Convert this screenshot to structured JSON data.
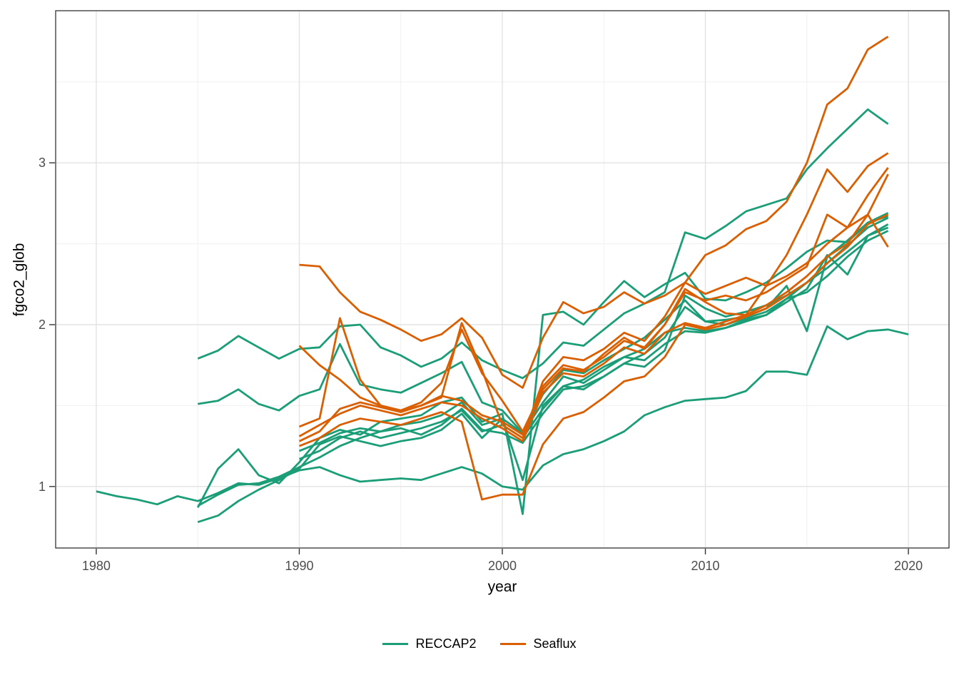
{
  "axes": {
    "x_title": "year",
    "y_title": "fgco2_glob",
    "x_ticks": [
      1980,
      1990,
      2000,
      2010,
      2020
    ],
    "y_ticks": [
      1,
      2,
      3
    ]
  },
  "legend": {
    "position": "bottom",
    "items": [
      {
        "label": "RECCAP2",
        "color": "#1B9E77"
      },
      {
        "label": "Seaflux",
        "color": "#D95F02"
      }
    ]
  },
  "colors": {
    "RECCAP2": "#1B9E77",
    "Seaflux": "#D95F02",
    "tick_text": "#4d4d4d",
    "panel_border": "#333333",
    "grid_major": "#e3e3e3",
    "grid_minor": "#f0f0f0"
  },
  "chart_data": {
    "type": "line",
    "title": "",
    "xlabel": "year",
    "ylabel": "fgco2_glob",
    "xlim": [
      1978,
      2022
    ],
    "ylim": [
      0.62,
      3.94
    ],
    "x_major": [
      1980,
      1990,
      2000,
      2010,
      2020
    ],
    "x_minor": [
      1985,
      1995,
      2005,
      2015
    ],
    "y_major": [
      1,
      2,
      3
    ],
    "y_minor": [
      1.5,
      2.5,
      3.5
    ],
    "grid": true,
    "legend_position": "bottom",
    "series": [
      {
        "name": "reccap2-1",
        "group": "RECCAP2",
        "start_year": 1985,
        "values": [
          1.79,
          1.84,
          1.93,
          1.86,
          1.79,
          1.85,
          1.86,
          1.99,
          2.0,
          1.86,
          1.81,
          1.74,
          1.79,
          1.89,
          1.78,
          1.72,
          1.67,
          1.76,
          1.89,
          1.87,
          1.97,
          2.07,
          2.13,
          2.2,
          2.57,
          2.53,
          2.61,
          2.7,
          2.74,
          2.78,
          2.96,
          3.09,
          3.21,
          3.33,
          3.24
        ]
      },
      {
        "name": "reccap2-2",
        "group": "RECCAP2",
        "start_year": 1985,
        "values": [
          1.51,
          1.53,
          1.6,
          1.51,
          1.47,
          1.56,
          1.6,
          1.88,
          1.63,
          1.6,
          1.58,
          1.64,
          1.7,
          1.77,
          1.52,
          1.47,
          1.33,
          1.57,
          1.72,
          1.7,
          1.78,
          1.85,
          1.92,
          2.03,
          2.15,
          2.02,
          2.03,
          2.05,
          2.1,
          2.24,
          1.96,
          2.42,
          2.52,
          2.63,
          2.69
        ]
      },
      {
        "name": "reccap2-3",
        "group": "RECCAP2",
        "start_year": 1985,
        "values": [
          0.87,
          1.11,
          1.23,
          1.07,
          1.02,
          1.15,
          1.3,
          1.35,
          1.32,
          1.4,
          1.42,
          1.44,
          1.52,
          1.55,
          1.4,
          1.45,
          0.83,
          2.06,
          2.08,
          2.0,
          2.14,
          2.27,
          2.17,
          2.25,
          2.32,
          2.16,
          2.15,
          2.2,
          2.26,
          2.35,
          2.45,
          2.52,
          2.51,
          2.63,
          2.67
        ]
      },
      {
        "name": "reccap2-4",
        "group": "RECCAP2",
        "start_year": 1985,
        "values": [
          0.88,
          0.95,
          1.01,
          1.02,
          1.06,
          1.12,
          1.18,
          1.25,
          1.3,
          1.34,
          1.36,
          1.32,
          1.38,
          1.48,
          1.35,
          1.33,
          1.27,
          1.45,
          1.6,
          1.62,
          1.68,
          1.76,
          1.82,
          1.92,
          2.11,
          2.02,
          2.0,
          2.04,
          2.08,
          2.16,
          2.26,
          2.38,
          2.49,
          2.6,
          2.66
        ]
      },
      {
        "name": "reccap2-5",
        "group": "RECCAP2",
        "start_year": 1980,
        "values": [
          0.97,
          0.94,
          0.92,
          0.89,
          0.94,
          0.91,
          0.96,
          1.02,
          1.01,
          1.05,
          1.1,
          1.12,
          1.07,
          1.03,
          1.04,
          1.05,
          1.04,
          1.08,
          1.12,
          1.08,
          1.0,
          0.98,
          1.13,
          1.2,
          1.23,
          1.28,
          1.34,
          1.44,
          1.49,
          1.53,
          1.54,
          1.55,
          1.59,
          1.71,
          1.71,
          1.69,
          1.99,
          1.91,
          1.96,
          1.97,
          1.94
        ]
      },
      {
        "name": "reccap2-6",
        "group": "RECCAP2",
        "start_year": 1985,
        "values": [
          0.78,
          0.82,
          0.91,
          0.98,
          1.04,
          1.11,
          1.26,
          1.31,
          1.28,
          1.25,
          1.28,
          1.3,
          1.35,
          1.45,
          1.3,
          1.42,
          1.04,
          1.5,
          1.62,
          1.66,
          1.74,
          1.8,
          1.85,
          1.95,
          1.98,
          1.96,
          1.98,
          2.02,
          2.06,
          2.14,
          2.22,
          2.43,
          2.31,
          2.55,
          2.62
        ]
      },
      {
        "name": "reccap2-7",
        "group": "RECCAP2",
        "start_year": 1990,
        "values": [
          1.22,
          1.27,
          1.33,
          1.36,
          1.34,
          1.38,
          1.4,
          1.44,
          1.52,
          1.38,
          1.42,
          1.33,
          1.52,
          1.68,
          1.64,
          1.72,
          1.8,
          1.78,
          1.88,
          1.96,
          1.95,
          1.98,
          2.03,
          2.06,
          2.16,
          2.2,
          2.3,
          2.42,
          2.52,
          2.58
        ]
      },
      {
        "name": "reccap2-8",
        "group": "RECCAP2",
        "start_year": 1990,
        "values": [
          1.17,
          1.22,
          1.3,
          1.34,
          1.3,
          1.33,
          1.36,
          1.4,
          1.47,
          1.34,
          1.38,
          1.3,
          1.48,
          1.62,
          1.6,
          1.68,
          1.76,
          1.74,
          1.84,
          2.18,
          2.1,
          2.05,
          2.08,
          2.12,
          2.18,
          2.26,
          2.35,
          2.45,
          2.55,
          2.6
        ]
      },
      {
        "name": "seaflux-1",
        "group": "Seaflux",
        "start_year": 1990,
        "values": [
          2.37,
          2.36,
          2.2,
          2.08,
          2.03,
          1.97,
          1.9,
          1.94,
          2.04,
          1.92,
          1.69,
          1.61,
          1.92,
          2.14,
          2.07,
          2.11,
          2.2,
          2.13,
          2.18,
          2.26,
          2.43,
          2.49,
          2.59,
          2.64,
          2.76,
          3.0,
          3.36,
          3.46,
          3.7,
          3.78
        ]
      },
      {
        "name": "seaflux-2",
        "group": "Seaflux",
        "start_year": 1990,
        "values": [
          1.87,
          1.75,
          1.66,
          1.55,
          1.5,
          1.47,
          1.52,
          1.64,
          1.97,
          1.7,
          1.53,
          1.34,
          1.6,
          1.73,
          1.71,
          1.82,
          1.92,
          1.85,
          2.0,
          2.22,
          2.14,
          2.07,
          2.06,
          2.24,
          2.43,
          2.68,
          2.96,
          2.82,
          2.98,
          3.06
        ]
      },
      {
        "name": "seaflux-3",
        "group": "Seaflux",
        "start_year": 1990,
        "values": [
          1.37,
          1.42,
          2.04,
          1.66,
          1.5,
          1.47,
          1.5,
          1.55,
          2.01,
          1.72,
          1.38,
          1.3,
          1.65,
          1.8,
          1.78,
          1.85,
          1.95,
          1.9,
          2.05,
          2.26,
          2.19,
          2.24,
          2.29,
          2.24,
          2.3,
          2.38,
          2.5,
          2.6,
          2.8,
          2.97
        ]
      },
      {
        "name": "seaflux-4",
        "group": "Seaflux",
        "start_year": 1990,
        "values": [
          1.31,
          1.38,
          1.45,
          1.5,
          1.47,
          1.44,
          1.48,
          1.52,
          1.5,
          1.42,
          1.36,
          1.28,
          1.58,
          1.7,
          1.68,
          1.76,
          1.86,
          1.82,
          1.95,
          2.01,
          1.98,
          2.02,
          2.06,
          2.12,
          2.2,
          2.3,
          2.42,
          2.5,
          2.68,
          2.93
        ]
      },
      {
        "name": "seaflux-5",
        "group": "Seaflux",
        "start_year": 1990,
        "values": [
          1.28,
          1.34,
          1.48,
          1.52,
          1.49,
          1.46,
          1.5,
          1.56,
          1.53,
          1.44,
          1.4,
          1.32,
          1.62,
          1.75,
          1.72,
          1.8,
          1.9,
          1.86,
          2.0,
          2.2,
          2.15,
          2.18,
          2.15,
          2.2,
          2.28,
          2.36,
          2.68,
          2.6,
          2.68,
          2.48
        ]
      },
      {
        "name": "seaflux-6",
        "group": "Seaflux",
        "start_year": 1990,
        "values": [
          1.25,
          1.3,
          1.38,
          1.42,
          1.4,
          1.38,
          1.42,
          1.46,
          1.4,
          0.92,
          0.95,
          0.95,
          1.26,
          1.42,
          1.46,
          1.55,
          1.65,
          1.68,
          1.8,
          2.0,
          1.97,
          2.0,
          2.05,
          2.1,
          2.18,
          2.26,
          2.38,
          2.48,
          2.62,
          2.68
        ]
      }
    ]
  }
}
